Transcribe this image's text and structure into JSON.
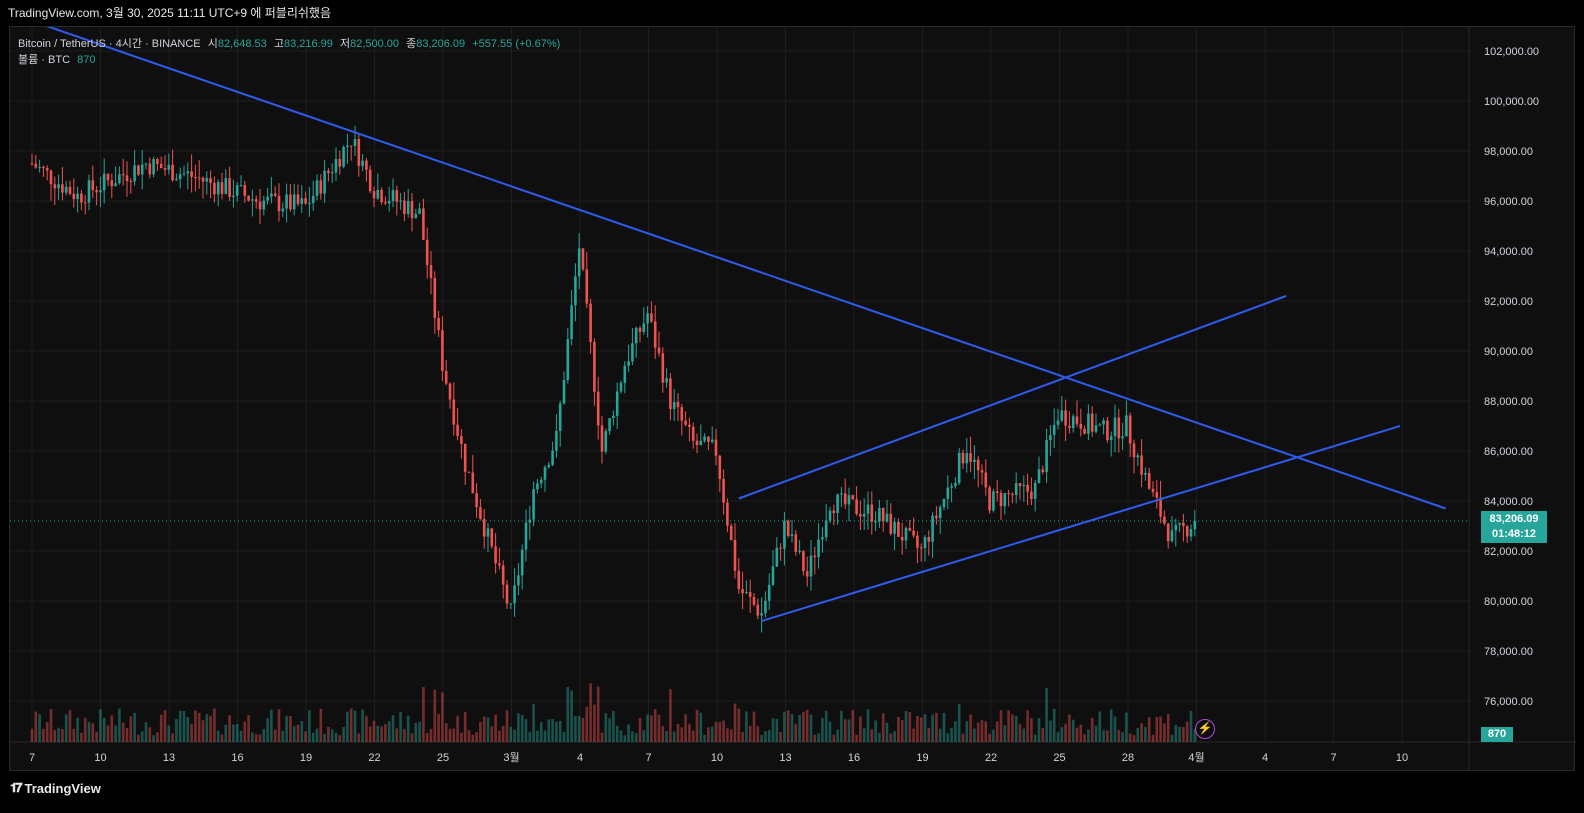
{
  "header": {
    "published": "TradingView.com, 3월 30, 2025 11:11 UTC+9 에 퍼블리쉬했음"
  },
  "legend": {
    "symbol": "Bitcoin / TetherUS · 4시간 · BINANCE",
    "open_label": "시",
    "open": "82,648.53",
    "high_label": "고",
    "high": "83,216.99",
    "low_label": "저",
    "low": "82,500.00",
    "close_label": "종",
    "close": "83,206.09",
    "change": "+557.55 (+0.67%)",
    "volume_label": "볼륨 · BTC",
    "volume_value": "870"
  },
  "price_tag": {
    "price": "83,206.09",
    "countdown": "01:48:12"
  },
  "volume_tag": "870",
  "footer": {
    "brand": "TradingView"
  },
  "colors": {
    "up": "#26a69a",
    "down": "#ef5350",
    "trendline": "#2f5cf0",
    "background": "#0f0f0f",
    "grid": "#1e1e1e"
  },
  "chart_data": {
    "type": "candlestick",
    "symbol": "BTCUSDT",
    "interval": "4시간",
    "y_axis_ticks": [
      "102,000.00",
      "100,000.00",
      "98,000.00",
      "96,000.00",
      "94,000.00",
      "92,000.00",
      "90,000.00",
      "88,000.00",
      "86,000.00",
      "84,000.00",
      "82,000.00",
      "80,000.00",
      "78,000.00",
      "76,000.00"
    ],
    "x_axis_ticks": [
      "7",
      "10",
      "13",
      "16",
      "19",
      "22",
      "25",
      "3월",
      "4",
      "7",
      "10",
      "13",
      "16",
      "19",
      "22",
      "25",
      "28",
      "4월",
      "4",
      "7",
      "10"
    ],
    "ylim": [
      75000,
      103000
    ],
    "last_price": 83206.09,
    "price_path_approx": [
      {
        "date": "2025-02-07",
        "price": 97500
      },
      {
        "date": "2025-02-09",
        "price": 96200
      },
      {
        "date": "2025-02-12",
        "price": 97500
      },
      {
        "date": "2025-02-14",
        "price": 97000
      },
      {
        "date": "2025-02-17",
        "price": 96000
      },
      {
        "date": "2025-02-19",
        "price": 95800
      },
      {
        "date": "2025-02-21",
        "price": 98500
      },
      {
        "date": "2025-02-22",
        "price": 96500
      },
      {
        "date": "2025-02-24",
        "price": 95500
      },
      {
        "date": "2025-02-25",
        "price": 89500
      },
      {
        "date": "2025-02-26",
        "price": 85500
      },
      {
        "date": "2025-02-28",
        "price": 79500
      },
      {
        "date": "2025-03-01",
        "price": 84500
      },
      {
        "date": "2025-03-02",
        "price": 86500
      },
      {
        "date": "2025-03-03",
        "price": 94200
      },
      {
        "date": "2025-03-04",
        "price": 86000
      },
      {
        "date": "2025-03-05",
        "price": 89500
      },
      {
        "date": "2025-03-06",
        "price": 91500
      },
      {
        "date": "2025-03-07",
        "price": 88000
      },
      {
        "date": "2025-03-08",
        "price": 86300
      },
      {
        "date": "2025-03-09",
        "price": 86000
      },
      {
        "date": "2025-03-10",
        "price": 80500
      },
      {
        "date": "2025-03-11",
        "price": 79500
      },
      {
        "date": "2025-03-12",
        "price": 83000
      },
      {
        "date": "2025-03-13",
        "price": 81000
      },
      {
        "date": "2025-03-14",
        "price": 84000
      },
      {
        "date": "2025-03-16",
        "price": 83500
      },
      {
        "date": "2025-03-18",
        "price": 82000
      },
      {
        "date": "2025-03-20",
        "price": 86200
      },
      {
        "date": "2025-03-21",
        "price": 84000
      },
      {
        "date": "2025-03-23",
        "price": 84500
      },
      {
        "date": "2025-03-24",
        "price": 87500
      },
      {
        "date": "2025-03-25",
        "price": 87200
      },
      {
        "date": "2025-03-26",
        "price": 86800
      },
      {
        "date": "2025-03-27",
        "price": 87000
      },
      {
        "date": "2025-03-28",
        "price": 84500
      },
      {
        "date": "2025-03-29",
        "price": 82500
      },
      {
        "date": "2025-03-30",
        "price": 83206
      }
    ],
    "trendlines": [
      {
        "name": "downtrend",
        "from": {
          "date": "2025-02-07",
          "price": 103200
        },
        "to": {
          "date": "2025-04-10",
          "price": 83700
        }
      },
      {
        "name": "channel-upper",
        "from": {
          "date": "2025-03-10",
          "price": 84100
        },
        "to": {
          "date": "2025-04-03",
          "price": 92200
        }
      },
      {
        "name": "channel-lower",
        "from": {
          "date": "2025-03-11",
          "price": 79200
        },
        "to": {
          "date": "2025-04-08",
          "price": 87000
        }
      }
    ]
  }
}
